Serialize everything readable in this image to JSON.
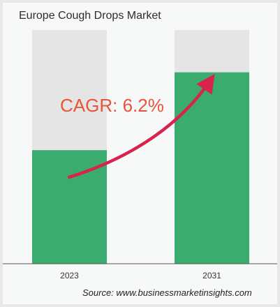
{
  "title": "Europe Cough Drops Market",
  "source": "Source: www.businessmarketinsights.com",
  "colors": {
    "bar_fill": "#3aad6e",
    "bar_track": "#e5e5e5",
    "arrow": "#d8234e",
    "annotation": "#e8533a",
    "axis": "#555555"
  },
  "chart_data": {
    "type": "bar",
    "title": "Europe Cough Drops Market",
    "categories": [
      "2023",
      "2031"
    ],
    "values": [
      0.486,
      0.819
    ],
    "value_unit": "fraction of full bar height (relative market size; no values printed)",
    "xlabel": "",
    "ylabel": "",
    "grid": false,
    "annotations": [
      {
        "text": "CAGR: 6.2%",
        "type": "arrow",
        "from": "2023",
        "to": "2031"
      }
    ]
  }
}
